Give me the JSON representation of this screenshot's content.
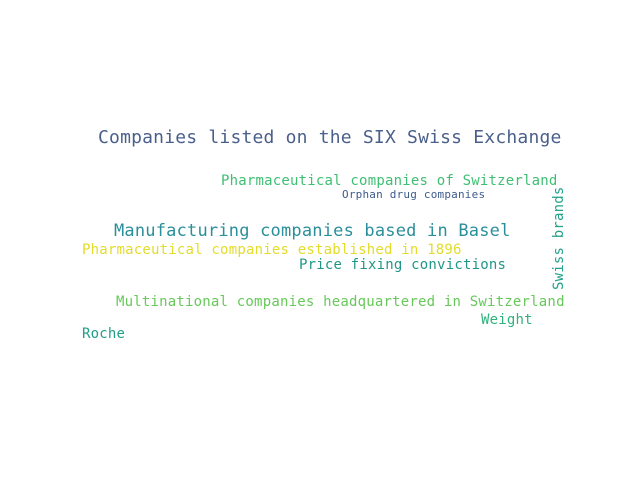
{
  "words": [
    {
      "text": "Companies listed on the SIX Swiss Exchange",
      "color": "#4a5f8a"
    },
    {
      "text": "Pharmaceutical companies of Switzerland",
      "color": "#3fbf74"
    },
    {
      "text": "Orphan drug companies",
      "color": "#3e5b8d"
    },
    {
      "text": "Manufacturing companies based in Basel",
      "color": "#2a8f9b"
    },
    {
      "text": "Pharmaceutical companies established in 1896",
      "color": "#e3dc2a"
    },
    {
      "text": "Price fixing convictions",
      "color": "#20968a"
    },
    {
      "text": "Multinational companies headquartered in Switzerland",
      "color": "#67c95a"
    },
    {
      "text": "Weight",
      "color": "#2fb27c"
    },
    {
      "text": "Roche",
      "color": "#1f9e88"
    },
    {
      "text": "Swiss brands",
      "color": "#23a28a"
    }
  ]
}
